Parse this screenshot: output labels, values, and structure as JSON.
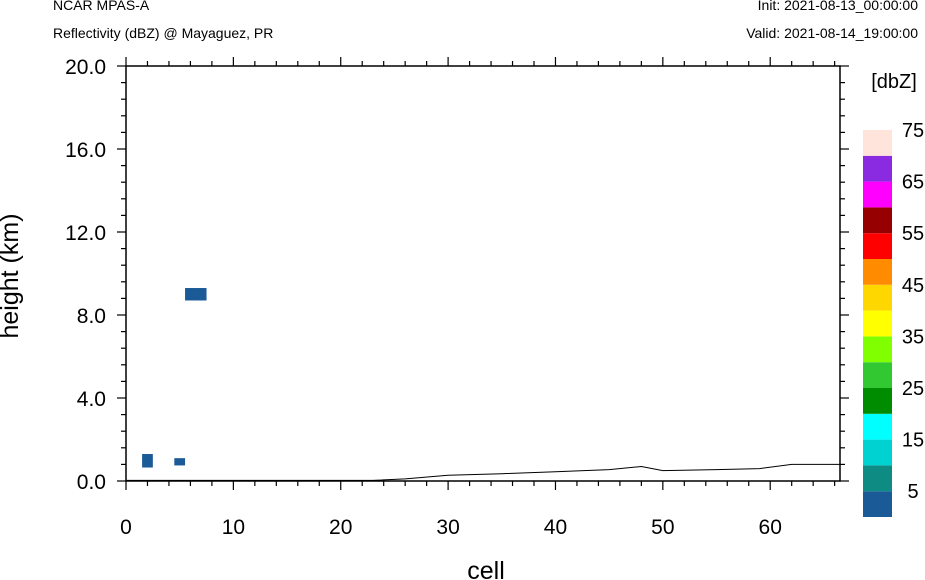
{
  "header": {
    "model": "NCAR MPAS-A",
    "field": "Reflectivity (dBZ) @ Mayaguez, PR",
    "init": "Init: 2021-08-13_00:00:00",
    "valid": "Valid: 2021-08-14_19:00:00"
  },
  "chart_data": {
    "type": "heatmap",
    "xlabel": "cell",
    "ylabel": "height (km)",
    "xlim": [
      0,
      66.5
    ],
    "ylim": [
      0,
      20
    ],
    "x_ticks": [
      "0",
      "10",
      "20",
      "30",
      "40",
      "50",
      "60"
    ],
    "y_ticks": [
      "0.0",
      "4.0",
      "8.0",
      "12.0",
      "16.0",
      "20.0"
    ],
    "cells": [
      {
        "x0": 1.5,
        "x1": 2.5,
        "y0": 0.65,
        "y1": 1.3,
        "dbz": 5
      },
      {
        "x0": 4.5,
        "x1": 5.5,
        "y0": 0.75,
        "y1": 1.1,
        "dbz": 5
      },
      {
        "x0": 5.5,
        "x1": 7.5,
        "y0": 8.7,
        "y1": 9.3,
        "dbz": 5
      }
    ],
    "terrain": {
      "x": [
        0,
        23,
        26,
        30,
        35,
        40,
        45,
        48,
        50,
        55,
        59,
        62,
        66.5
      ],
      "height_km": [
        0.03,
        0.03,
        0.1,
        0.28,
        0.35,
        0.45,
        0.55,
        0.7,
        0.5,
        0.55,
        0.6,
        0.8,
        0.8
      ]
    },
    "colorbar": {
      "title": "[dbZ]",
      "labels": [
        "5",
        "15",
        "25",
        "35",
        "45",
        "55",
        "65",
        "75"
      ],
      "colors": [
        "#1a5a96",
        "#0e8c84",
        "#00d2d2",
        "#00ffff",
        "#008c00",
        "#32c832",
        "#7fff00",
        "#ffff00",
        "#ffd700",
        "#ff8c00",
        "#ff0000",
        "#960000",
        "#ff00ff",
        "#8a2be2",
        "#ffe4dc"
      ]
    }
  }
}
